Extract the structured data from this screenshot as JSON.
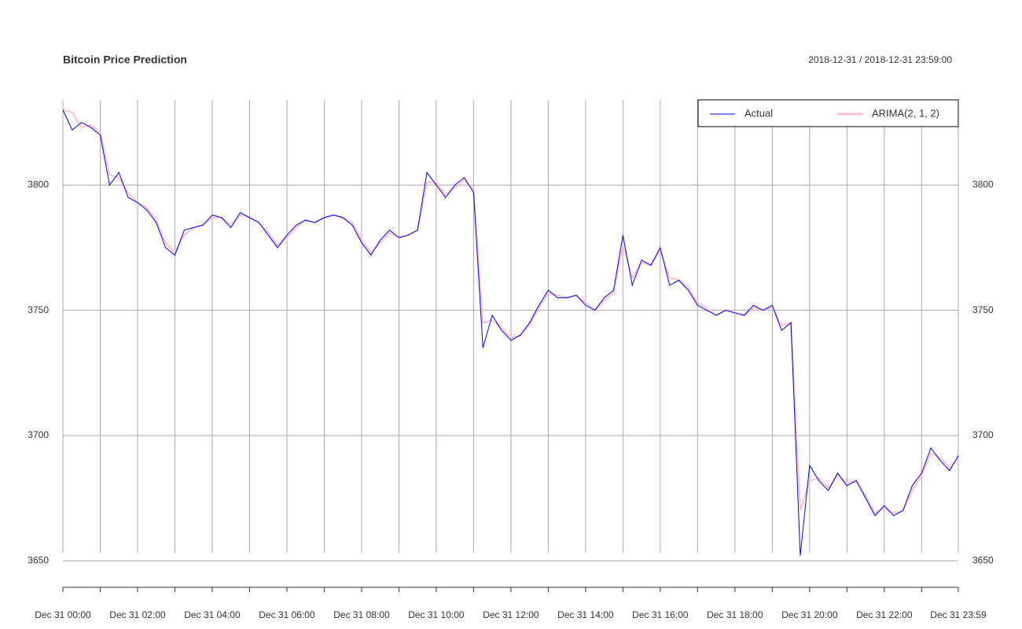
{
  "chart_data": {
    "type": "line",
    "title": "Bitcoin Price Prediction",
    "subtitle": "2018-12-31 / 2018-12-31 23:59:00",
    "x": [
      "Dec 31 00:00",
      "Dec 31 00:15",
      "Dec 31 00:30",
      "Dec 31 00:45",
      "Dec 31 01:00",
      "Dec 31 01:15",
      "Dec 31 01:30",
      "Dec 31 01:45",
      "Dec 31 02:00",
      "Dec 31 02:15",
      "Dec 31 02:30",
      "Dec 31 02:45",
      "Dec 31 03:00",
      "Dec 31 03:15",
      "Dec 31 03:30",
      "Dec 31 03:45",
      "Dec 31 04:00",
      "Dec 31 04:15",
      "Dec 31 04:30",
      "Dec 31 04:45",
      "Dec 31 05:00",
      "Dec 31 05:15",
      "Dec 31 05:30",
      "Dec 31 05:45",
      "Dec 31 06:00",
      "Dec 31 06:15",
      "Dec 31 06:30",
      "Dec 31 06:45",
      "Dec 31 07:00",
      "Dec 31 07:15",
      "Dec 31 07:30",
      "Dec 31 07:45",
      "Dec 31 08:00",
      "Dec 31 08:15",
      "Dec 31 08:30",
      "Dec 31 08:45",
      "Dec 31 09:00",
      "Dec 31 09:15",
      "Dec 31 09:30",
      "Dec 31 09:45",
      "Dec 31 10:00",
      "Dec 31 10:15",
      "Dec 31 10:30",
      "Dec 31 10:45",
      "Dec 31 11:00",
      "Dec 31 11:15",
      "Dec 31 11:30",
      "Dec 31 11:45",
      "Dec 31 12:00",
      "Dec 31 12:15",
      "Dec 31 12:30",
      "Dec 31 12:45",
      "Dec 31 13:00",
      "Dec 31 13:15",
      "Dec 31 13:30",
      "Dec 31 13:45",
      "Dec 31 14:00",
      "Dec 31 14:15",
      "Dec 31 14:30",
      "Dec 31 14:45",
      "Dec 31 15:00",
      "Dec 31 15:15",
      "Dec 31 15:30",
      "Dec 31 15:45",
      "Dec 31 16:00",
      "Dec 31 16:15",
      "Dec 31 16:30",
      "Dec 31 16:45",
      "Dec 31 17:00",
      "Dec 31 17:15",
      "Dec 31 17:30",
      "Dec 31 17:45",
      "Dec 31 18:00",
      "Dec 31 18:15",
      "Dec 31 18:30",
      "Dec 31 18:45",
      "Dec 31 19:00",
      "Dec 31 19:15",
      "Dec 31 19:30",
      "Dec 31 19:45",
      "Dec 31 20:00",
      "Dec 31 20:15",
      "Dec 31 20:30",
      "Dec 31 20:45",
      "Dec 31 21:00",
      "Dec 31 21:15",
      "Dec 31 21:30",
      "Dec 31 21:45",
      "Dec 31 22:00",
      "Dec 31 22:15",
      "Dec 31 22:30",
      "Dec 31 22:45",
      "Dec 31 23:00",
      "Dec 31 23:15",
      "Dec 31 23:30",
      "Dec 31 23:45",
      "Dec 31 23:59"
    ],
    "series": [
      {
        "name": "Actual",
        "color": "#0000ff",
        "values": [
          3830,
          3822,
          3825,
          3823,
          3820,
          3800,
          3805,
          3795,
          3793,
          3790,
          3785,
          3775,
          3772,
          3782,
          3783,
          3784,
          3788,
          3787,
          3783,
          3789,
          3787,
          3785,
          3780,
          3775,
          3780,
          3784,
          3786,
          3785,
          3787,
          3788,
          3787,
          3784,
          3777,
          3772,
          3778,
          3782,
          3779,
          3780,
          3782,
          3805,
          3800,
          3795,
          3800,
          3803,
          3797,
          3735,
          3748,
          3742,
          3738,
          3740,
          3745,
          3752,
          3758,
          3755,
          3755,
          3756,
          3752,
          3750,
          3755,
          3758,
          3780,
          3760,
          3770,
          3768,
          3775,
          3760,
          3762,
          3758,
          3752,
          3750,
          3748,
          3750,
          3749,
          3748,
          3752,
          3750,
          3752,
          3742,
          3745,
          3652,
          3688,
          3682,
          3678,
          3685,
          3680,
          3682,
          3675,
          3668,
          3672,
          3668,
          3670,
          3680,
          3685,
          3695,
          3690,
          3686,
          3692
        ]
      },
      {
        "name": "ARIMA(2, 1, 2)",
        "color": "#ffc0cb",
        "values": [
          3830,
          3829,
          3823,
          3824,
          3821,
          3804,
          3803,
          3797,
          3793,
          3791,
          3786,
          3777,
          3773,
          3780,
          3783,
          3784,
          3787,
          3787,
          3784,
          3788,
          3787,
          3785,
          3781,
          3776,
          3779,
          3783,
          3786,
          3785,
          3787,
          3788,
          3787,
          3785,
          3778,
          3773,
          3777,
          3781,
          3779,
          3780,
          3782,
          3801,
          3801,
          3796,
          3799,
          3802,
          3798,
          3745,
          3746,
          3743,
          3739,
          3740,
          3744,
          3751,
          3757,
          3756,
          3755,
          3756,
          3753,
          3750,
          3754,
          3757,
          3776,
          3763,
          3769,
          3768,
          3774,
          3763,
          3762,
          3759,
          3753,
          3751,
          3748,
          3750,
          3749,
          3748,
          3751,
          3750,
          3751,
          3744,
          3745,
          3670,
          3682,
          3683,
          3679,
          3684,
          3681,
          3682,
          3676,
          3669,
          3671,
          3669,
          3670,
          3678,
          3684,
          3693,
          3691,
          3687,
          3691
        ]
      }
    ],
    "xlim": [
      "Dec 31 00:00",
      "Dec 31 23:59"
    ],
    "xticks": [
      "Dec 31 00:00",
      {
        "value": "Dec 31 01:00",
        "label": null
      },
      "Dec 31 02:00",
      {
        "value": "Dec 31 03:00",
        "label": null
      },
      "Dec 31 04:00",
      {
        "value": "Dec 31 05:00",
        "label": null
      },
      "Dec 31 06:00",
      {
        "value": "Dec 31 07:00",
        "label": null
      },
      "Dec 31 08:00",
      {
        "value": "Dec 31 09:00",
        "label": null
      },
      "Dec 31 10:00",
      {
        "value": "Dec 31 11:00",
        "label": null
      },
      "Dec 31 12:00",
      {
        "value": "Dec 31 13:00",
        "label": null
      },
      "Dec 31 14:00",
      {
        "value": "Dec 31 15:00",
        "label": null
      },
      "Dec 31 16:00",
      {
        "value": "Dec 31 17:00",
        "label": null
      },
      "Dec 31 18:00",
      {
        "value": "Dec 31 19:00",
        "label": null
      },
      "Dec 31 20:00",
      {
        "value": "Dec 31 21:00",
        "label": null
      },
      "Dec 31 22:00",
      {
        "value": "Dec 31 23:00",
        "label": null
      },
      "Dec 31 23:59"
    ],
    "ylim": [
      3646,
      3834
    ],
    "yticks": [
      3650,
      3700,
      3750,
      3800
    ],
    "grid": true,
    "legend": "top-right"
  }
}
